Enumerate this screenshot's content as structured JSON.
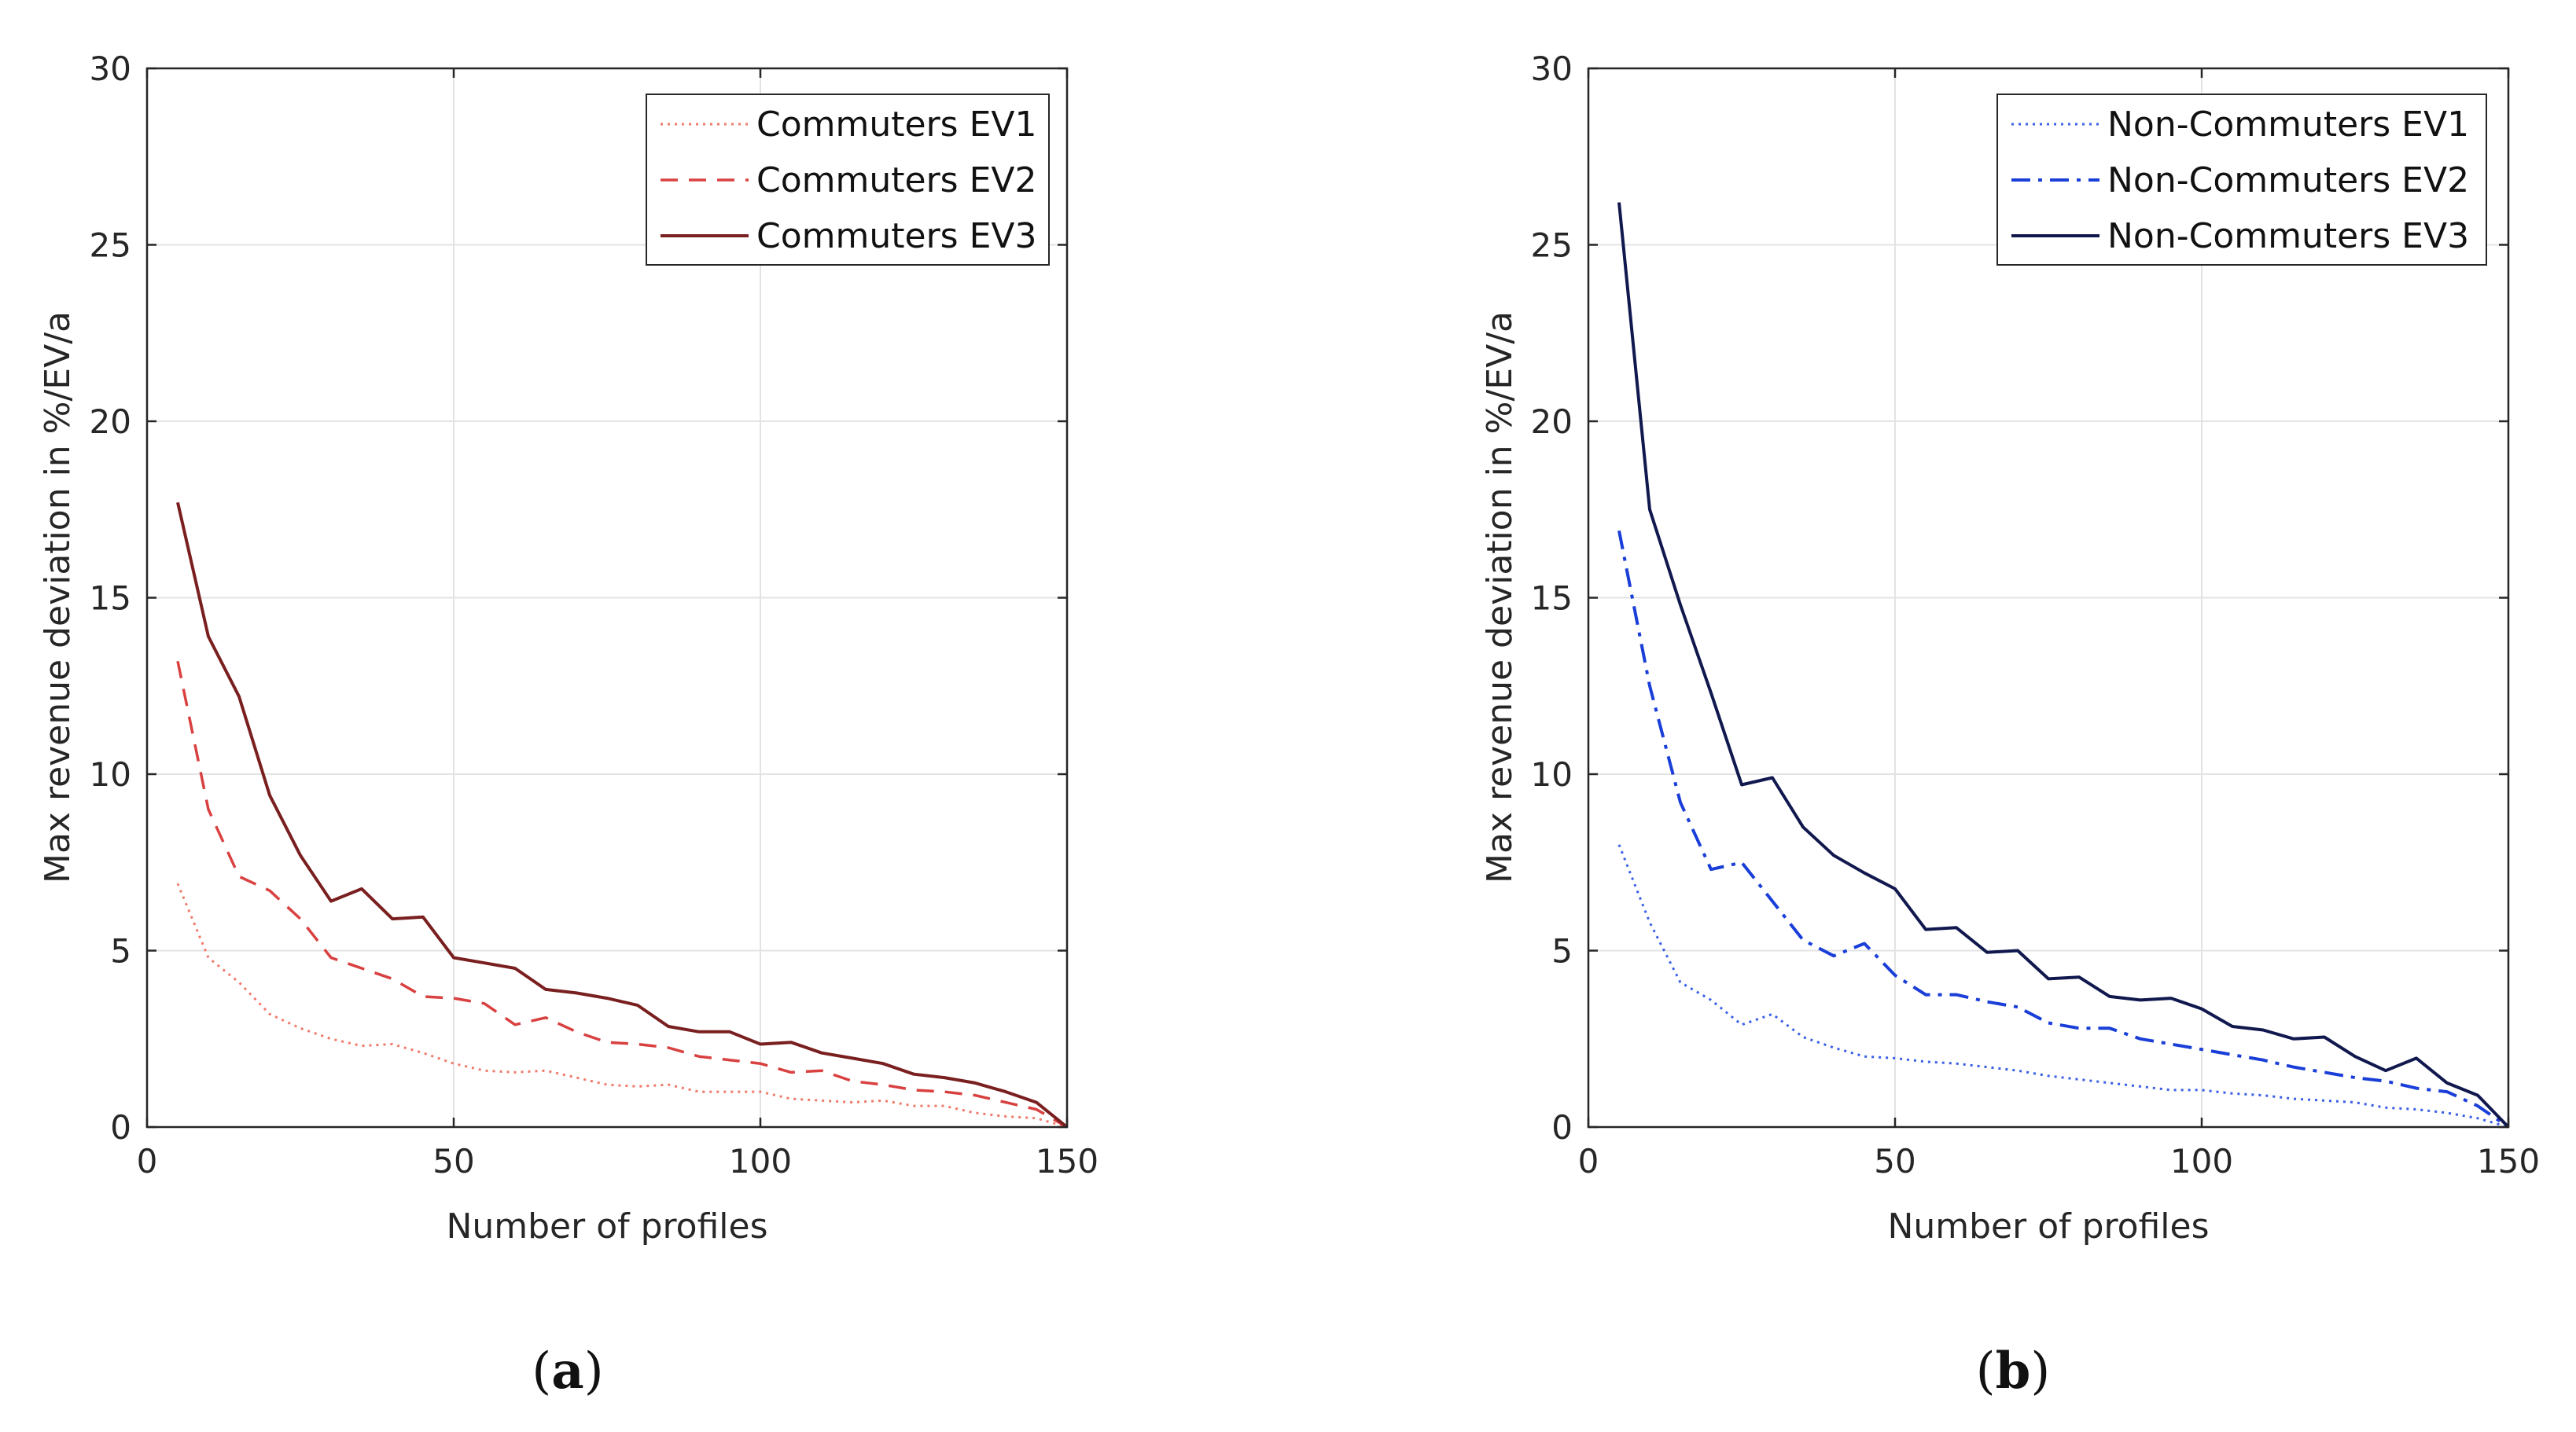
{
  "chart_data": [
    {
      "type": "line",
      "panel_label": "a",
      "xlabel": "Number of profiles",
      "ylabel": "Max revenue deviation in %/EV/a",
      "xlim": [
        0,
        150
      ],
      "ylim": [
        0,
        30
      ],
      "xticks": [
        0,
        50,
        100,
        150
      ],
      "yticks": [
        0,
        5,
        10,
        15,
        20,
        25,
        30
      ],
      "grid": true,
      "legend_position": "top-right",
      "x": [
        5,
        10,
        15,
        20,
        25,
        30,
        35,
        40,
        45,
        50,
        55,
        60,
        65,
        70,
        75,
        80,
        85,
        90,
        95,
        100,
        105,
        110,
        115,
        120,
        125,
        130,
        135,
        140,
        145,
        150
      ],
      "series": [
        {
          "name": "Commuters EV1",
          "color": "#f07a6a",
          "style": "dotted",
          "width": 3,
          "values": [
            6.9,
            4.8,
            4.1,
            3.2,
            2.8,
            2.5,
            2.3,
            2.35,
            2.1,
            1.8,
            1.6,
            1.55,
            1.6,
            1.4,
            1.2,
            1.15,
            1.2,
            1.0,
            1.0,
            1.0,
            0.8,
            0.75,
            0.7,
            0.75,
            0.6,
            0.6,
            0.4,
            0.3,
            0.25,
            0.0
          ]
        },
        {
          "name": "Commuters EV2",
          "color": "#d94040",
          "style": "dashed",
          "width": 3.5,
          "values": [
            13.2,
            9.0,
            7.1,
            6.7,
            5.9,
            4.8,
            4.5,
            4.2,
            3.7,
            3.65,
            3.5,
            2.9,
            3.1,
            2.7,
            2.4,
            2.35,
            2.25,
            2.0,
            1.9,
            1.8,
            1.55,
            1.6,
            1.3,
            1.2,
            1.05,
            1.0,
            0.9,
            0.7,
            0.5,
            0.0
          ]
        },
        {
          "name": "Commuters EV3",
          "color": "#7a1f1f",
          "style": "solid",
          "width": 4,
          "values": [
            17.7,
            13.9,
            12.2,
            9.4,
            7.7,
            6.4,
            6.75,
            5.9,
            5.95,
            4.8,
            4.65,
            4.5,
            3.9,
            3.8,
            3.65,
            3.45,
            2.85,
            2.7,
            2.7,
            2.35,
            2.4,
            2.1,
            1.95,
            1.8,
            1.5,
            1.4,
            1.25,
            1.0,
            0.7,
            0.0
          ]
        }
      ]
    },
    {
      "type": "line",
      "panel_label": "b",
      "xlabel": "Number of profiles",
      "ylabel": "Max revenue deviation in %/EV/a",
      "xlim": [
        0,
        150
      ],
      "ylim": [
        0,
        30
      ],
      "xticks": [
        0,
        50,
        100,
        150
      ],
      "yticks": [
        0,
        5,
        10,
        15,
        20,
        25,
        30
      ],
      "grid": true,
      "legend_position": "top-right",
      "x": [
        5,
        10,
        15,
        20,
        25,
        30,
        35,
        40,
        45,
        50,
        55,
        60,
        65,
        70,
        75,
        80,
        85,
        90,
        95,
        100,
        105,
        110,
        115,
        120,
        125,
        130,
        135,
        140,
        145,
        150
      ],
      "series": [
        {
          "name": "Non-Commuters EV1",
          "color": "#3a5fe6",
          "style": "dotted",
          "width": 3,
          "values": [
            8.0,
            5.8,
            4.1,
            3.6,
            2.9,
            3.2,
            2.55,
            2.25,
            2.0,
            1.95,
            1.85,
            1.8,
            1.7,
            1.6,
            1.45,
            1.35,
            1.25,
            1.15,
            1.05,
            1.05,
            0.95,
            0.9,
            0.8,
            0.75,
            0.7,
            0.55,
            0.5,
            0.4,
            0.25,
            0.0
          ]
        },
        {
          "name": "Non-Commuters EV2",
          "color": "#1a3ed8",
          "style": "dashdot",
          "width": 4,
          "values": [
            16.9,
            12.5,
            9.2,
            7.3,
            7.5,
            6.4,
            5.3,
            4.85,
            5.2,
            4.3,
            3.75,
            3.75,
            3.55,
            3.4,
            2.95,
            2.8,
            2.8,
            2.5,
            2.35,
            2.2,
            2.05,
            1.9,
            1.7,
            1.55,
            1.4,
            1.3,
            1.1,
            1.0,
            0.6,
            0.0
          ]
        },
        {
          "name": "Non-Commuters EV3",
          "color": "#10184e",
          "style": "solid",
          "width": 4,
          "values": [
            26.2,
            17.5,
            14.8,
            12.3,
            9.7,
            9.9,
            8.5,
            7.7,
            7.2,
            6.75,
            5.6,
            5.65,
            4.95,
            5.0,
            4.2,
            4.25,
            3.7,
            3.6,
            3.65,
            3.35,
            2.85,
            2.75,
            2.5,
            2.55,
            2.0,
            1.6,
            1.95,
            1.25,
            0.9,
            0.0
          ]
        }
      ]
    }
  ]
}
